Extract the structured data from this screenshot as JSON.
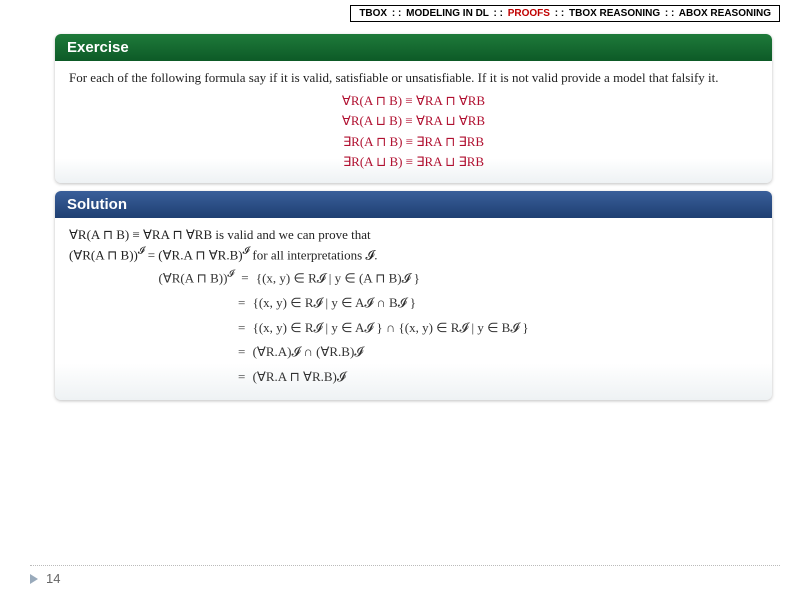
{
  "breadcrumb": {
    "items": [
      "TBOX",
      "MODELING IN DL",
      "PROOFS",
      "TBOX REASONING",
      "ABOX REASONING"
    ],
    "sep": ": :",
    "activeIndex": 2
  },
  "exercise": {
    "title": "Exercise",
    "intro": "For each of the following formula say if it is valid, satisfiable or unsatisfiable. If it is not valid provide a model that falsify it.",
    "formulas": [
      "∀R(A ⊓ B) ≡ ∀RA ⊓ ∀RB",
      "∀R(A ⊔ B) ≡ ∀RA ⊔ ∀RB",
      "∃R(A ⊓ B) ≡ ∃RA ⊓ ∃RB",
      "∃R(A ⊔ B) ≡ ∃RA ⊔ ∃RB"
    ]
  },
  "solution": {
    "title": "Solution",
    "claim_line1": "∀R(A ⊓ B) ≡ ∀RA ⊓ ∀RB is valid and we can prove that",
    "claim_line2_lhs": "(∀R(A ⊓ B))",
    "claim_line2_mid": " = (∀R.A ⊓ ∀R.B)",
    "claim_line2_tail": " for all interpretations 𝓘.",
    "proof": {
      "lhs": "(∀R(A ⊓ B))",
      "steps": [
        "{(x, y) ∈ R𝓘 | y ∈ (A ⊓ B)𝓘 }",
        "{(x, y) ∈ R𝓘 | y ∈ A𝓘 ∩ B𝓘 }",
        "{(x, y) ∈ R𝓘 | y ∈ A𝓘 } ∩ {(x, y) ∈ R𝓘 | y ∈ B𝓘 }",
        "(∀R.A)𝓘 ∩ (∀R.B)𝓘",
        "(∀R.A ⊓ ∀R.B)𝓘"
      ]
    }
  },
  "page": "14",
  "colors": {
    "exerciseHeader": "#0d5a27",
    "solutionHeader": "#1f3f72",
    "formula": "#b01030",
    "breadcrumbActive": "#c00000"
  }
}
